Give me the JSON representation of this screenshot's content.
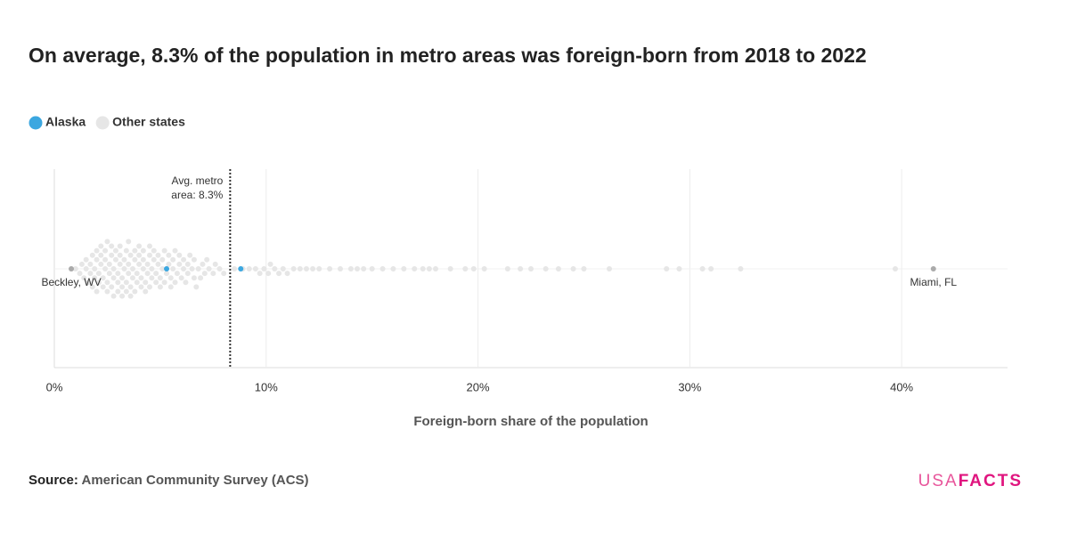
{
  "chart_data": {
    "type": "beeswarm",
    "title": "On average, 8.3% of the population in metro areas was foreign-born from 2018 to 2022",
    "x_label": "Foreign-born share of the population",
    "xlim": [
      0,
      45
    ],
    "xticks": [
      {
        "value": 0,
        "label": "0%"
      },
      {
        "value": 10,
        "label": "10%"
      },
      {
        "value": 20,
        "label": "20%"
      },
      {
        "value": 30,
        "label": "30%"
      },
      {
        "value": 40,
        "label": "40%"
      }
    ],
    "grid": true,
    "series": [
      {
        "name": "Alaska",
        "color": "#3ba7e0",
        "values": [
          5.3,
          8.8
        ]
      },
      {
        "name": "Other states",
        "color": "#e6e6e6",
        "values": [
          1.0,
          1.2,
          1.3,
          1.4,
          1.5,
          1.5,
          1.6,
          1.7,
          1.7,
          1.8,
          1.8,
          1.9,
          1.9,
          2.0,
          2.0,
          2.0,
          2.1,
          2.1,
          2.2,
          2.2,
          2.2,
          2.3,
          2.3,
          2.4,
          2.4,
          2.4,
          2.5,
          2.5,
          2.5,
          2.6,
          2.6,
          2.7,
          2.7,
          2.7,
          2.8,
          2.8,
          2.8,
          2.9,
          2.9,
          3.0,
          3.0,
          3.0,
          3.1,
          3.1,
          3.1,
          3.2,
          3.2,
          3.2,
          3.3,
          3.3,
          3.4,
          3.4,
          3.4,
          3.5,
          3.5,
          3.5,
          3.6,
          3.6,
          3.6,
          3.7,
          3.7,
          3.8,
          3.8,
          3.8,
          3.9,
          3.9,
          4.0,
          4.0,
          4.0,
          4.1,
          4.1,
          4.2,
          4.2,
          4.2,
          4.3,
          4.3,
          4.4,
          4.4,
          4.5,
          4.5,
          4.5,
          4.6,
          4.6,
          4.7,
          4.7,
          4.8,
          4.8,
          4.9,
          4.9,
          5.0,
          5.0,
          5.1,
          5.1,
          5.2,
          5.2,
          5.3,
          5.4,
          5.4,
          5.5,
          5.5,
          5.6,
          5.6,
          5.7,
          5.7,
          5.8,
          5.9,
          5.9,
          6.0,
          6.1,
          6.1,
          6.2,
          6.3,
          6.3,
          6.4,
          6.5,
          6.6,
          6.6,
          6.7,
          6.8,
          6.9,
          7.0,
          7.1,
          7.2,
          7.3,
          7.5,
          7.6,
          7.8,
          8.0,
          8.5,
          8.9,
          9.2,
          9.5,
          9.7,
          9.9,
          10.1,
          10.2,
          10.4,
          10.6,
          10.8,
          11.0,
          11.3,
          11.6,
          11.9,
          12.2,
          12.5,
          13.0,
          13.5,
          14.0,
          14.3,
          14.6,
          15.0,
          15.5,
          16.0,
          16.5,
          17.0,
          17.4,
          17.7,
          18.0,
          18.7,
          19.4,
          19.8,
          20.3,
          21.4,
          22.0,
          22.5,
          23.2,
          23.8,
          24.5,
          25.0,
          26.2,
          28.9,
          29.5,
          30.6,
          31.0,
          32.4,
          39.7
        ]
      }
    ],
    "labeled_points": [
      {
        "label": "Beckley, WV",
        "x": 0.8
      },
      {
        "label": "Miami, FL",
        "x": 41.5
      }
    ],
    "average_line": {
      "value": 8.3,
      "label_lines": [
        "Avg. metro",
        "area: 8.3%"
      ]
    },
    "source_label": "Source:",
    "source": "American Community Survey (ACS)",
    "logo": [
      "USA",
      "FACTS"
    ]
  }
}
